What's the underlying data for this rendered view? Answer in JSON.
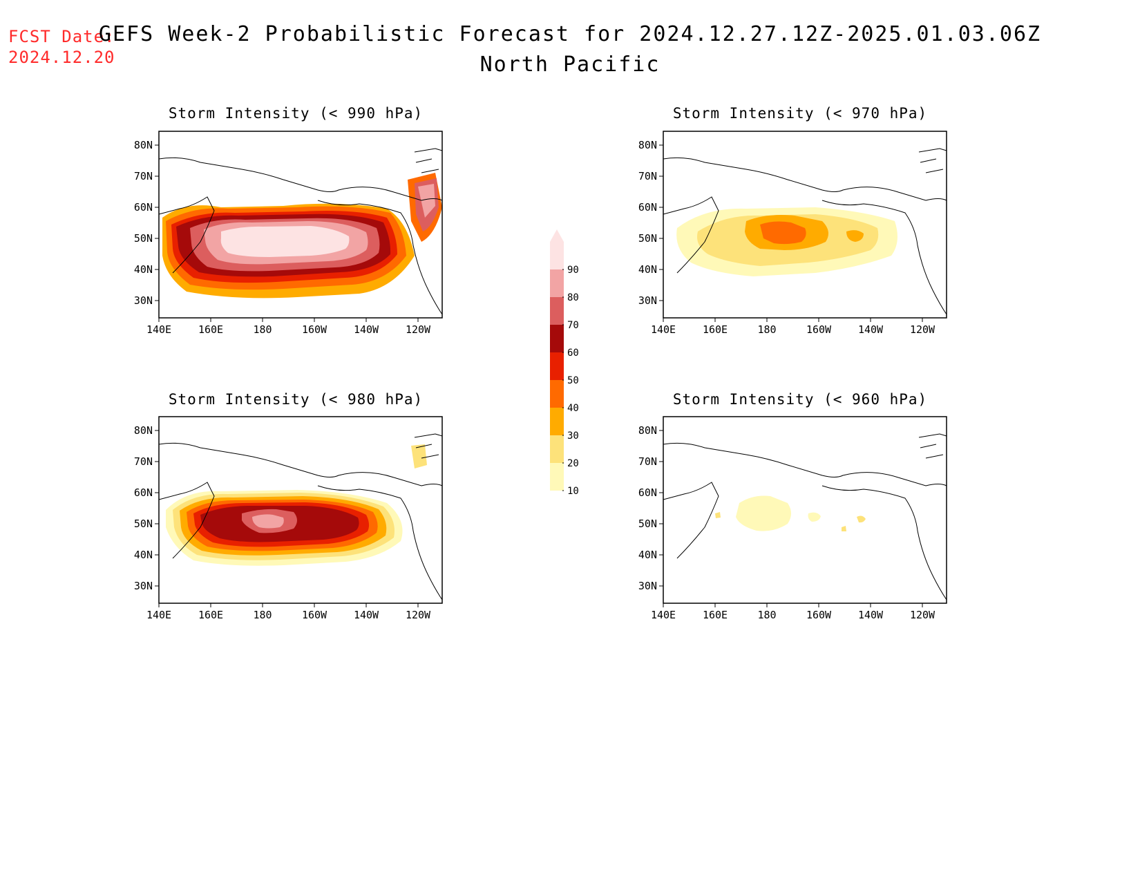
{
  "forecast_date": {
    "label": "FCST Date:",
    "value": "2024.12.20"
  },
  "title": {
    "line1": "GEFS Week-2 Probabilistic Forecast for 2024.12.27.12Z-2025.01.03.06Z",
    "line2": "North Pacific"
  },
  "panels": [
    {
      "title": "Storm Intensity (< 990 hPa)"
    },
    {
      "title": "Storm Intensity (< 970 hPa)"
    },
    {
      "title": "Storm Intensity (< 980 hPa)"
    },
    {
      "title": "Storm Intensity (< 960 hPa)"
    }
  ],
  "axes": {
    "lat_labels": [
      "80N",
      "70N",
      "60N",
      "50N",
      "40N",
      "30N"
    ],
    "lon_labels": [
      "140E",
      "160E",
      "180",
      "160W",
      "140W",
      "120W"
    ]
  },
  "colorbar": {
    "levels": [
      "10",
      "20",
      "30",
      "40",
      "50",
      "60",
      "70",
      "80",
      "90"
    ],
    "colors": [
      "#fff9b8",
      "#fde27a",
      "#ffab00",
      "#ff6a00",
      "#e82000",
      "#a50a0a",
      "#dc5e5e",
      "#f2a4a4",
      "#fde3e3"
    ]
  }
}
